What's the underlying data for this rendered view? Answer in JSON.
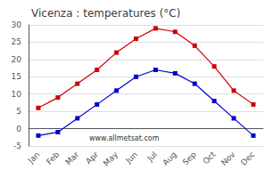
{
  "chart_data": {
    "type": "line",
    "title": "Vicenza : temperatures (°C)",
    "categories": [
      "Jan",
      "Feb",
      "Mar",
      "Apr",
      "May",
      "Jun",
      "Jul",
      "Aug",
      "Sep",
      "Oct",
      "Nov",
      "Dec"
    ],
    "series": [
      {
        "color": "#cc0000",
        "values": [
          6,
          9,
          13,
          17,
          22,
          26,
          29,
          28,
          24,
          18,
          11,
          7
        ]
      },
      {
        "color": "#0000cc",
        "values": [
          -2,
          -1,
          3,
          7,
          11,
          15,
          17,
          16,
          13,
          8,
          3,
          -2
        ]
      }
    ],
    "marker": "square",
    "ylim": [
      -5,
      30
    ],
    "yticks": [
      -5,
      0,
      5,
      10,
      15,
      20,
      25,
      30
    ],
    "grid": true,
    "annotation": "www.allmetsat.com"
  }
}
